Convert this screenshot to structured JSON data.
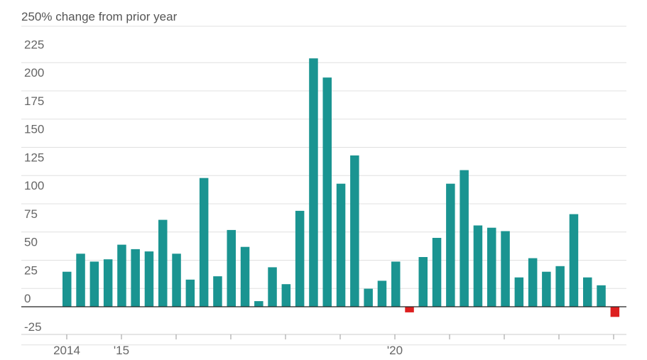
{
  "chart_data": {
    "type": "bar",
    "title": "250% change from prior year",
    "ylim": [
      -25,
      250
    ],
    "y_ticks": [
      225,
      200,
      175,
      150,
      125,
      100,
      75,
      50,
      25,
      0,
      -25
    ],
    "x_tick_labels": [
      "2014",
      "'15",
      "'20"
    ],
    "grid": true,
    "colors": {
      "positive": "#1a9491",
      "negative": "#dd1f1f",
      "gridline": "#e0e0e0",
      "zero_line": "#222222",
      "axis": "#cccccc",
      "text": "#666666"
    },
    "series": [
      {
        "values": [
          31,
          47,
          40,
          42,
          55,
          51,
          49,
          77,
          47,
          24,
          114,
          27,
          68,
          53,
          5,
          35,
          20,
          85,
          220,
          203,
          109,
          134,
          16,
          23,
          40,
          -5,
          44,
          61,
          109,
          121,
          72,
          70,
          67,
          26,
          43,
          31,
          36,
          82,
          26,
          19,
          -9
        ]
      }
    ]
  }
}
